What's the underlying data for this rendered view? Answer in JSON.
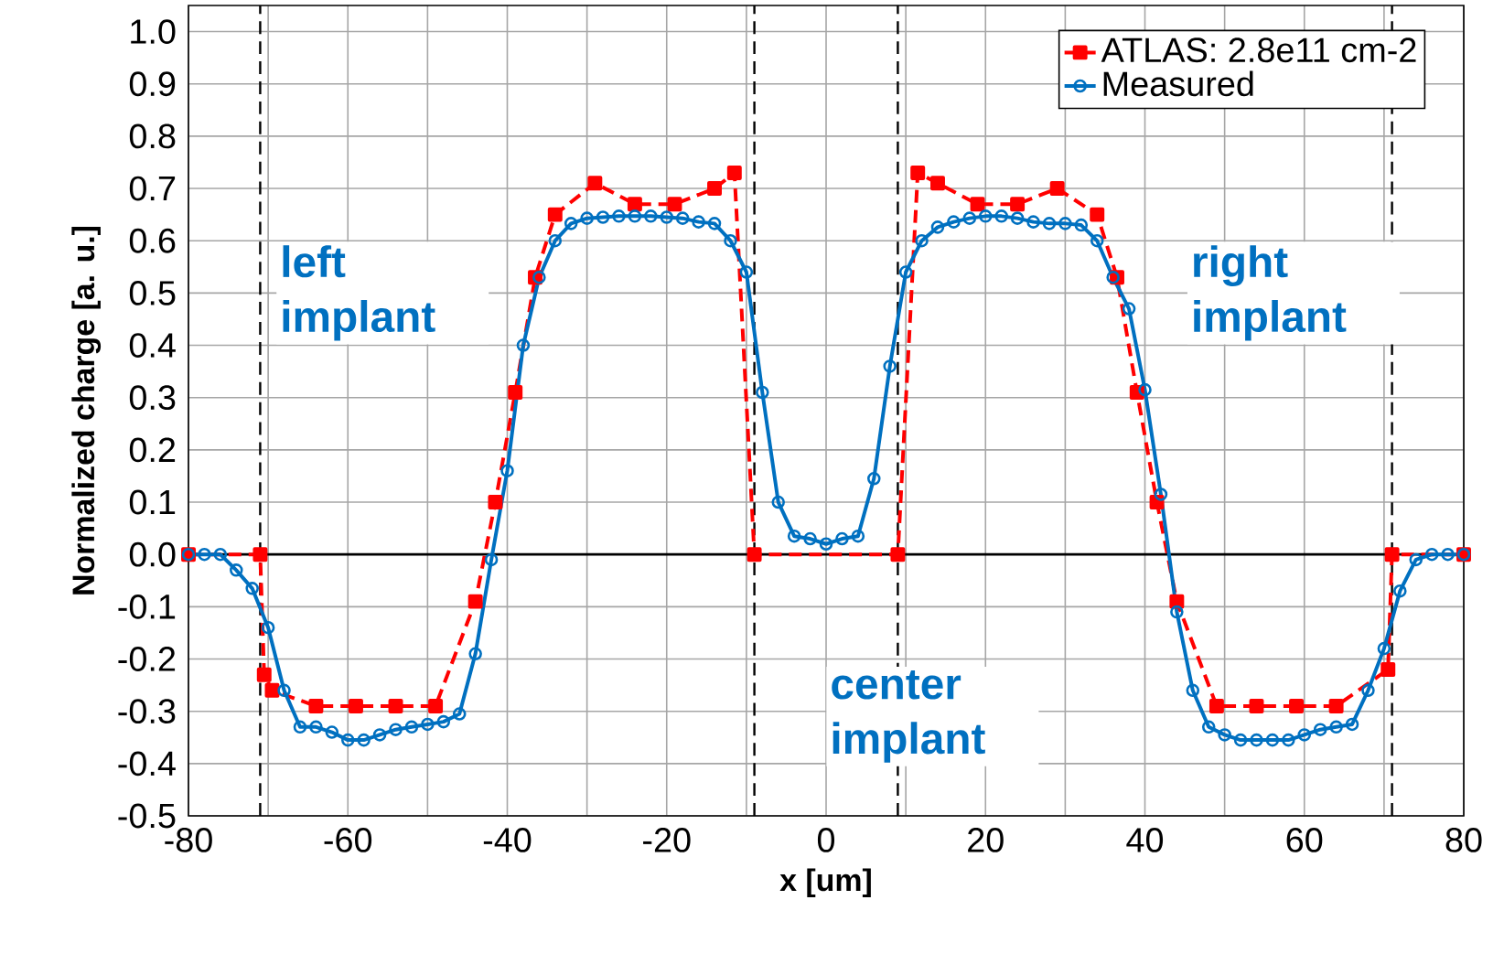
{
  "chart_data": {
    "type": "line",
    "xlabel": "x [um]",
    "ylabel": "Normalized charge [a. u.]",
    "xlim": [
      -80,
      80
    ],
    "ylim": [
      -0.5,
      1.05
    ],
    "xticks": [
      -80,
      {
        "value": -70,
        "label": null
      },
      -60,
      {
        "value": -50,
        "label": null
      },
      -40,
      {
        "value": -30,
        "label": null
      },
      -20,
      {
        "value": -10,
        "label": null
      },
      0,
      {
        "value": 10,
        "label": null
      },
      20,
      {
        "value": 30,
        "label": null
      },
      40,
      {
        "value": 50,
        "label": null
      },
      60,
      {
        "value": 70,
        "label": null
      },
      80
    ],
    "yticks": [
      -0.5,
      -0.4,
      -0.3,
      -0.2,
      -0.1,
      {
        "value": 0,
        "label": "0.0"
      },
      0.1,
      0.2,
      0.3,
      0.4,
      0.5,
      0.6,
      0.7,
      0.8,
      0.9,
      {
        "value": 1,
        "label": "1.0"
      }
    ],
    "grid": true,
    "legend": "top right",
    "series": [
      {
        "name": "ATLAS: 2.8e11 cm-2",
        "color": "#ff0000",
        "marker": "square",
        "line_style": "dashed",
        "x": [
          -80,
          -71,
          -70.5,
          -69.5,
          -64,
          -59,
          -54,
          -49,
          -44,
          -41.5,
          -39,
          -36.5,
          -34,
          -29,
          -24,
          -19,
          -14,
          -11.5,
          -9,
          9,
          11.5,
          14,
          19,
          24,
          29,
          34,
          36.5,
          39,
          41.5,
          44,
          49,
          54,
          59,
          64,
          70.5,
          71,
          80
        ],
        "values": [
          0,
          0,
          -0.23,
          -0.26,
          -0.29,
          -0.29,
          -0.29,
          -0.29,
          -0.09,
          0.1,
          0.31,
          0.53,
          0.65,
          0.71,
          0.67,
          0.67,
          0.7,
          0.73,
          0,
          0,
          0.73,
          0.71,
          0.67,
          0.67,
          0.7,
          0.65,
          0.53,
          0.31,
          0.1,
          -0.09,
          -0.29,
          -0.29,
          -0.29,
          -0.29,
          -0.22,
          0,
          0
        ]
      },
      {
        "name": "Measured",
        "color": "#0070c0",
        "marker": "circle",
        "line_style": "solid",
        "x": [
          -80,
          -78,
          -76,
          -74,
          -72,
          -70,
          -68,
          -66,
          -64,
          -62,
          -60,
          -58,
          -56,
          -54,
          -52,
          -50,
          -48,
          -46,
          -44,
          -42,
          -40,
          -38,
          -36,
          -34,
          -32,
          -30,
          -28,
          -26,
          -24,
          -22,
          -20,
          -18,
          -16,
          -14,
          -12,
          -10,
          -8,
          -6,
          -4,
          -2,
          0,
          2,
          4,
          6,
          8,
          10,
          12,
          14,
          16,
          18,
          20,
          22,
          24,
          26,
          28,
          30,
          32,
          34,
          36,
          38,
          40,
          42,
          44,
          46,
          48,
          50,
          52,
          54,
          56,
          58,
          60,
          62,
          64,
          66,
          68,
          70,
          72,
          74,
          76,
          78,
          80
        ],
        "values": [
          0,
          0,
          0,
          -0.03,
          -0.065,
          -0.14,
          -0.26,
          -0.33,
          -0.33,
          -0.34,
          -0.355,
          -0.355,
          -0.345,
          -0.335,
          -0.33,
          -0.325,
          -0.32,
          -0.305,
          -0.19,
          -0.01,
          0.16,
          0.4,
          0.53,
          0.6,
          0.633,
          0.643,
          0.645,
          0.647,
          0.647,
          0.647,
          0.645,
          0.643,
          0.636,
          0.633,
          0.6,
          0.54,
          0.31,
          0.1,
          0.035,
          0.03,
          0.02,
          0.03,
          0.035,
          0.145,
          0.36,
          0.54,
          0.6,
          0.626,
          0.636,
          0.643,
          0.647,
          0.647,
          0.643,
          0.636,
          0.633,
          0.633,
          0.63,
          0.6,
          0.53,
          0.47,
          0.315,
          0.115,
          -0.11,
          -0.26,
          -0.33,
          -0.345,
          -0.355,
          -0.355,
          -0.355,
          -0.355,
          -0.345,
          -0.335,
          -0.33,
          -0.325,
          -0.26,
          -0.18,
          -0.07,
          -0.01,
          0,
          0,
          0
        ]
      }
    ],
    "ref_lines": [
      {
        "axis": "y",
        "value": 0,
        "color": "#000000",
        "line_style": "solid"
      },
      {
        "axis": "x",
        "value": -71,
        "color": "#000000",
        "line_style": "dashed"
      },
      {
        "axis": "x",
        "value": -9,
        "color": "#000000",
        "line_style": "dashed"
      },
      {
        "axis": "x",
        "value": 9,
        "color": "#000000",
        "line_style": "dashed"
      },
      {
        "axis": "x",
        "value": 71,
        "color": "#000000",
        "line_style": "dashed"
      }
    ],
    "annotations": [
      "left implant",
      "right implant",
      "center implant"
    ]
  }
}
